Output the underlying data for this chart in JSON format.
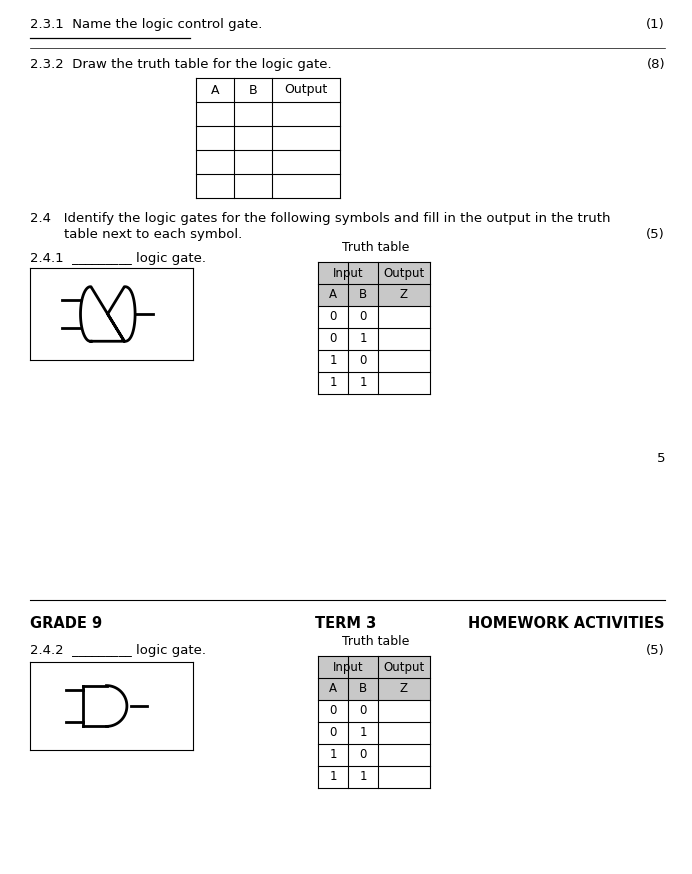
{
  "bg_color": "#ffffff",
  "text_color": "#000000",
  "line_color": "#000000",
  "table_header_bg": "#c8c8c8",
  "section_231": "2.3.1  Name the logic control gate.",
  "section_231_mark": "(1)",
  "section_232": "2.3.2  Draw the truth table for the logic gate.",
  "section_232_mark": "(8)",
  "table_232_cols": [
    "A",
    "B",
    "Output"
  ],
  "table_232_rows": 4,
  "section_24_line1": "2.4   Identify the logic gates for the following symbols and fill in the output in the truth",
  "section_24_line2": "        table next to each symbol.",
  "section_24_mark": "(5)",
  "section_241": "2.4.1  _________ logic gate.",
  "section_242": "2.4.2  _________ logic gate.",
  "section_242_mark": "(5)",
  "truth_table_title": "Truth table",
  "truth_input_header": "Input",
  "truth_output_header": "Output",
  "truth_cols": [
    "A",
    "B",
    "Z"
  ],
  "truth_rows": [
    [
      "0",
      "0",
      ""
    ],
    [
      "0",
      "1",
      ""
    ],
    [
      "1",
      "0",
      ""
    ],
    [
      "1",
      "1",
      ""
    ]
  ],
  "page_number": "5",
  "footer_left": "GRADE 9",
  "footer_center": "TERM 3",
  "footer_right": "HOMEWORK ACTIVITIES",
  "font_size_body": 9.5,
  "font_size_table": 9.0,
  "font_size_small": 8.5
}
